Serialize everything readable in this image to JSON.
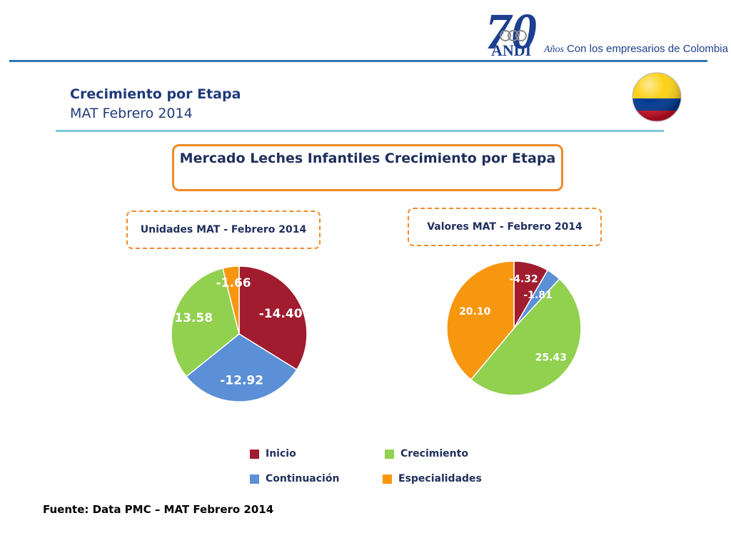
{
  "header": {
    "logo": {
      "number": "70",
      "brand": "ANDI",
      "anos": "Años",
      "tagline": "Con los empresarios de Colombia"
    },
    "title": "Crecimiento por Etapa",
    "subtitle": "MAT Febrero 2014"
  },
  "main_title": "Mercado Leches Infantiles Crecimiento por Etapa",
  "source": "Fuente: Data PMC – MAT Febrero 2014",
  "legend": [
    {
      "label": "Inicio",
      "color": "#a01c2e"
    },
    {
      "label": "Crecimiento",
      "color": "#92d050"
    },
    {
      "label": "Continuación",
      "color": "#5b8fd6"
    },
    {
      "label": "Especialidades",
      "color": "#f7960f"
    }
  ],
  "chart_data": [
    {
      "type": "pie",
      "title": "Unidades MAT - Febrero 2014",
      "slices": [
        {
          "label": "Inicio",
          "value": -14.4,
          "display": "-14.40",
          "color": "#a01c2e"
        },
        {
          "label": "Continuación",
          "value": -12.92,
          "display": "-12.92",
          "color": "#5b8fd6"
        },
        {
          "label": "Crecimiento",
          "value": 13.58,
          "display": "13.58",
          "color": "#92d050"
        },
        {
          "label": "Especialidades",
          "value": -1.66,
          "display": "-1.66",
          "color": "#f7960f"
        }
      ]
    },
    {
      "type": "pie",
      "title": "Valores MAT - Febrero 2014",
      "slices": [
        {
          "label": "Inicio",
          "value": -4.32,
          "display": "-4.32",
          "color": "#a01c2e"
        },
        {
          "label": "Continuación",
          "value": -1.81,
          "display": "-1.81",
          "color": "#5b8fd6"
        },
        {
          "label": "Crecimiento",
          "value": 25.43,
          "display": "25.43",
          "color": "#92d050"
        },
        {
          "label": "Especialidades",
          "value": 20.1,
          "display": "20.10",
          "color": "#f7960f"
        }
      ]
    }
  ]
}
